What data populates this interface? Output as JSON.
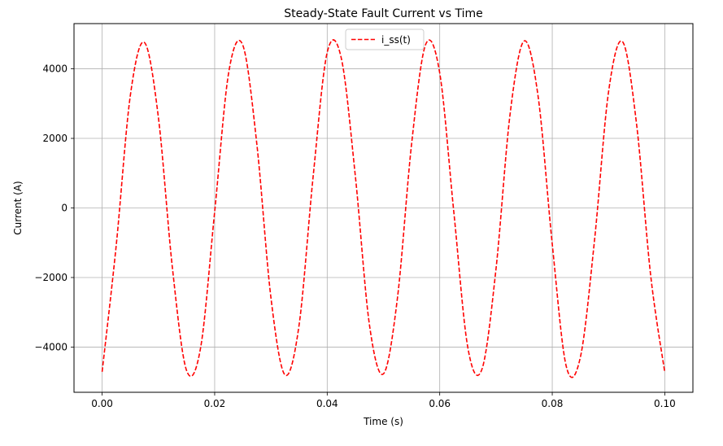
{
  "chart_data": {
    "type": "line",
    "title": "Steady-State Fault Current vs Time",
    "xlabel": "Time (s)",
    "ylabel": "Current (A)",
    "xlim": [
      -0.005,
      0.105
    ],
    "ylim": [
      -5300,
      5300
    ],
    "xticks": [
      0.0,
      0.02,
      0.04,
      0.06,
      0.08,
      0.1
    ],
    "xtick_labels": [
      "0.00",
      "0.02",
      "0.04",
      "0.06",
      "0.08",
      "0.10"
    ],
    "yticks": [
      -4000,
      -2000,
      0,
      2000,
      4000
    ],
    "ytick_labels": [
      "−4000",
      "−2000",
      "0",
      "2000",
      "4000"
    ],
    "grid": true,
    "legend_position": "top-center",
    "series": [
      {
        "name": "i_ss(t)",
        "color": "#ff0000",
        "line_style": "dashed",
        "x": [
          0.0,
          0.0025,
          0.005,
          0.0075,
          0.01,
          0.0125,
          0.015,
          0.0175,
          0.02,
          0.0225,
          0.025,
          0.0275,
          0.03,
          0.0325,
          0.035,
          0.0375,
          0.04,
          0.0425,
          0.045,
          0.0475,
          0.05,
          0.0525,
          0.055,
          0.0575,
          0.06,
          0.0625,
          0.065,
          0.0675,
          0.07,
          0.0725,
          0.075,
          0.0775,
          0.08,
          0.0825,
          0.085,
          0.0875,
          0.09,
          0.0925,
          0.095,
          0.0975,
          0.1
        ],
        "y": [
          -4710,
          -1080,
          3220,
          4760,
          2600,
          -1740,
          -4670,
          -4020,
          -110,
          3900,
          4680,
          1830,
          -2580,
          -4800,
          -3370,
          900,
          4470,
          4310,
          920,
          -3350,
          -4770,
          -2570,
          1840,
          4700,
          3880,
          -110,
          -4020,
          -4640,
          -1760,
          2690,
          4800,
          3190,
          -1040,
          -4560,
          -4290,
          -950,
          3330,
          4780,
          2390,
          -1950,
          -4730
        ]
      }
    ]
  }
}
